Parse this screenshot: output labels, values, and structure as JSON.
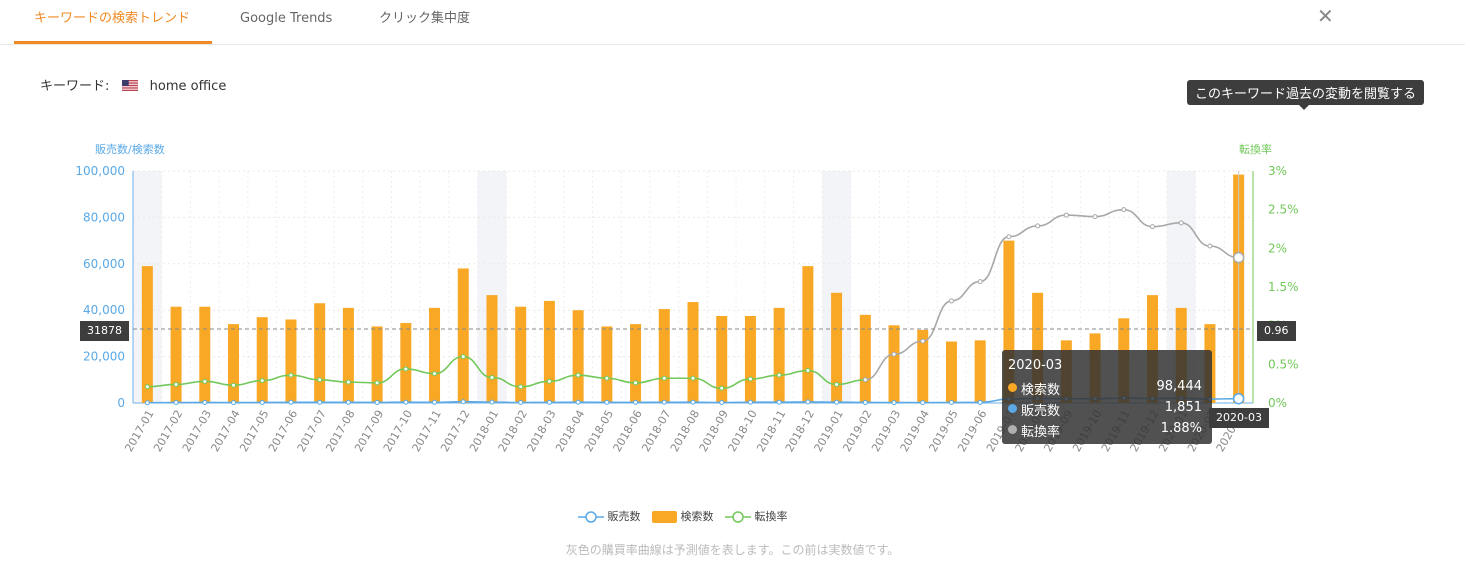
{
  "tabs": [
    {
      "label": "キーワードの検索トレンド"
    },
    {
      "label": "Google Trends"
    },
    {
      "label": "クリック集中度"
    }
  ],
  "close_icon": "close-icon",
  "keyword": {
    "label": "キーワード:",
    "flag": "us-flag-icon",
    "value": "home office"
  },
  "history_tooltip": "このキーワード過去の変動を閲覧する",
  "chart_data": {
    "type": "bar",
    "left_axis_label": "販売数/検索数",
    "right_axis_label": "転換率",
    "left_ticks": [
      "100,000",
      "80,000",
      "60,000",
      "40,000",
      "20,000",
      "0"
    ],
    "right_ticks": [
      "3%",
      "2.5%",
      "2%",
      "1.5%",
      "1%",
      "0.5%",
      "0%"
    ],
    "ylim_left": [
      0,
      100000
    ],
    "ylim_right": [
      0,
      3
    ],
    "categories": [
      "2017-01",
      "2017-02",
      "2017-03",
      "2017-04",
      "2017-05",
      "2017-06",
      "2017-07",
      "2017-08",
      "2017-09",
      "2017-10",
      "2017-11",
      "2017-12",
      "2018-01",
      "2018-02",
      "2018-03",
      "2018-04",
      "2018-05",
      "2018-06",
      "2018-07",
      "2018-08",
      "2018-09",
      "2018-10",
      "2018-11",
      "2018-12",
      "2019-01",
      "2019-02",
      "2019-03",
      "2019-04",
      "2019-05",
      "2019-06",
      "2019-07",
      "2019-08",
      "2019-09",
      "2019-10",
      "2019-11",
      "2019-12",
      "2020-01",
      "2020-02",
      "2020-03"
    ],
    "series": [
      {
        "name": "検索数",
        "color": "#f9a825",
        "values": [
          59000,
          41500,
          41500,
          34000,
          37000,
          36000,
          43000,
          41000,
          33000,
          34500,
          41000,
          58000,
          46500,
          41500,
          44000,
          40000,
          33000,
          34000,
          40500,
          43500,
          37500,
          37500,
          41000,
          59000,
          47500,
          38000,
          33500,
          31500,
          26500,
          27000,
          70000,
          47500,
          27000,
          30000,
          36500,
          46500,
          41000,
          34000,
          98444
        ]
      },
      {
        "name": "販売数",
        "color": "#5aa9e6",
        "values": [
          120,
          200,
          240,
          180,
          230,
          300,
          290,
          280,
          240,
          330,
          300,
          560,
          380,
          200,
          270,
          330,
          280,
          260,
          310,
          330,
          200,
          320,
          350,
          470,
          340,
          240,
          180,
          160,
          200,
          250,
          1700,
          2000,
          1800,
          1850,
          2100,
          1900,
          2000,
          1700,
          1851
        ]
      },
      {
        "name": "転換率",
        "color": "#72c85a",
        "values": [
          0.21,
          0.24,
          0.28,
          0.23,
          0.29,
          0.36,
          0.3,
          0.27,
          0.26,
          0.44,
          0.38,
          0.6,
          0.33,
          0.21,
          0.28,
          0.36,
          0.32,
          0.26,
          0.32,
          0.32,
          0.19,
          0.31,
          0.36,
          0.42,
          0.24,
          0.3,
          null,
          null,
          null,
          null,
          null,
          null,
          null,
          null,
          null,
          null,
          null,
          null,
          null
        ]
      },
      {
        "name": "予測転換率",
        "color": "#a8a8a8",
        "values": [
          null,
          null,
          null,
          null,
          null,
          null,
          null,
          null,
          null,
          null,
          null,
          null,
          null,
          null,
          null,
          null,
          null,
          null,
          null,
          null,
          null,
          null,
          null,
          null,
          null,
          0.3,
          0.63,
          0.8,
          1.32,
          1.57,
          2.15,
          2.29,
          2.43,
          2.41,
          2.5,
          2.28,
          2.33,
          2.03,
          1.88
        ]
      }
    ],
    "crosshair_left": "31878",
    "crosshair_right": "0.96",
    "crosshair_bottom": "2020-03"
  },
  "hover_box": {
    "title": "2020-03",
    "rows": [
      {
        "name": "検索数",
        "value": "98,444",
        "color": "#f9a825"
      },
      {
        "name": "販売数",
        "value": "1,851",
        "color": "#5aa9e6"
      },
      {
        "name": "転換率",
        "value": "1.88%",
        "color": "#b0b0b0"
      }
    ]
  },
  "legend": [
    {
      "name": "販売数"
    },
    {
      "name": "検索数"
    },
    {
      "name": "転換率"
    }
  ],
  "footer": "灰色の購買率曲線は予測値を表します。この前は実数値です。"
}
